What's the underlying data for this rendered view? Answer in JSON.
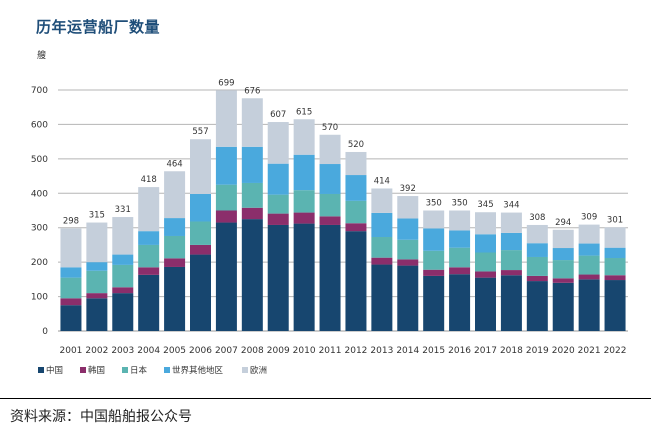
{
  "title": "历年运营船厂数量",
  "source": "资料来源：中国船舶报公众号",
  "colors": {
    "中国": "#17466f",
    "韩国": "#8b2e6b",
    "日本": "#5bb4b1",
    "世界其他地区": "#4aa9dd",
    "欧洲": "#c5cfdb"
  },
  "chart_data": {
    "type": "bar",
    "stacked": true,
    "ylabel": "艘",
    "ylim": [
      0,
      700
    ],
    "yticks": [
      0,
      100,
      200,
      300,
      400,
      500,
      600,
      700
    ],
    "grid": true,
    "legend_position": "bottom-left",
    "categories": [
      "2001",
      "2002",
      "2003",
      "2004",
      "2005",
      "2006",
      "2007",
      "2008",
      "2009",
      "2010",
      "2011",
      "2012",
      "2013",
      "2014",
      "2015",
      "2016",
      "2017",
      "2018",
      "2019",
      "2020",
      "2021",
      "2022"
    ],
    "totals": [
      298,
      315,
      331,
      418,
      464,
      557,
      699,
      676,
      607,
      615,
      570,
      520,
      414,
      392,
      350,
      350,
      345,
      344,
      308,
      294,
      309,
      301
    ],
    "series": [
      {
        "name": "中国",
        "color": "#17466f",
        "values": [
          75,
          95,
          110,
          163,
          186,
          222,
          315,
          325,
          308,
          312,
          308,
          290,
          193,
          190,
          160,
          165,
          155,
          162,
          145,
          140,
          150,
          148
        ]
      },
      {
        "name": "韩国",
        "color": "#8b2e6b",
        "values": [
          20,
          15,
          17,
          22,
          25,
          28,
          35,
          33,
          33,
          32,
          25,
          23,
          20,
          18,
          18,
          20,
          18,
          15,
          15,
          13,
          14,
          14
        ]
      },
      {
        "name": "日本",
        "color": "#5bb4b1",
        "values": [
          60,
          65,
          65,
          65,
          65,
          68,
          75,
          72,
          55,
          65,
          65,
          65,
          60,
          57,
          55,
          57,
          55,
          58,
          55,
          53,
          55,
          50
        ]
      },
      {
        "name": "世界其他地区",
        "color": "#4aa9dd",
        "values": [
          30,
          25,
          30,
          40,
          52,
          80,
          110,
          105,
          90,
          103,
          87,
          75,
          70,
          62,
          65,
          50,
          53,
          50,
          40,
          35,
          35,
          30
        ]
      },
      {
        "name": "欧洲",
        "color": "#c5cfdb",
        "values": [
          113,
          115,
          109,
          128,
          136,
          159,
          164,
          141,
          121,
          103,
          85,
          67,
          71,
          65,
          52,
          58,
          64,
          59,
          53,
          53,
          55,
          59
        ]
      }
    ]
  }
}
